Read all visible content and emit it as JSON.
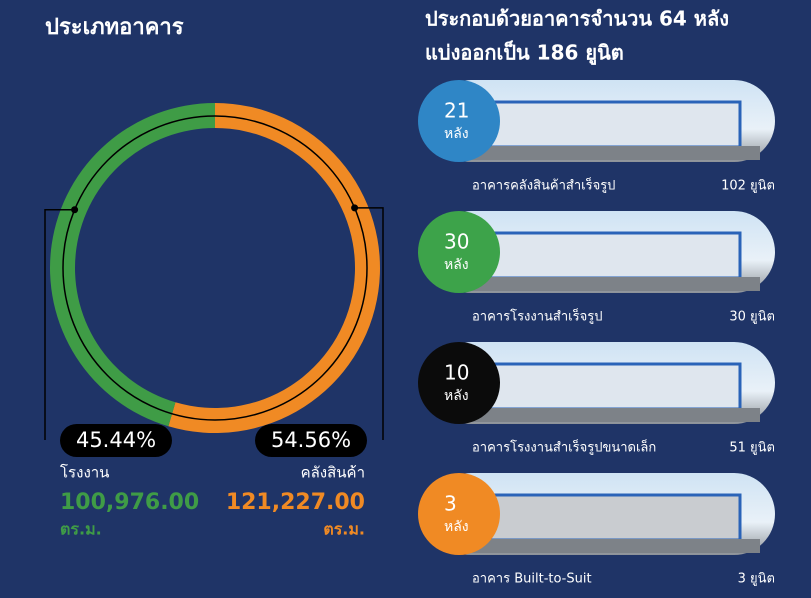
{
  "chart_data": {
    "type": "donut",
    "title": "ประเภทอาคาร",
    "categories": [
      "โรงงาน",
      "คลังสินค้า"
    ],
    "values": [
      45.44,
      54.56
    ],
    "value_labels": [
      "45.44%",
      "54.56%"
    ],
    "colors": [
      "#3f9c46",
      "#f08a24"
    ],
    "areas": [
      "100,976.00",
      "121,227.00"
    ],
    "area_unit": "ตร.ม."
  },
  "buildings": {
    "heading": [
      "ประกอบด้วยอาคารจำนวน 64 หลัง",
      "แบ่งออกเป็น 186 ยูนิต"
    ],
    "count_unit": "หลัง",
    "items": [
      {
        "count": "21",
        "name": "อาคารคลังสินค้าสำเร็จรูป",
        "units": "102 ยูนิต",
        "color": "#2f86c6"
      },
      {
        "count": "30",
        "name": "อาคารโรงงานสำเร็จรูป",
        "units": "30 ยูนิต",
        "color": "#3da34a"
      },
      {
        "count": "10",
        "name": "อาคารโรงงานสำเร็จรูปขนาดเล็ก",
        "units": "51 ยูนิต",
        "color": "#0b0b0b"
      },
      {
        "count": "3",
        "name": "อาคาร Built-to-Suit",
        "units": "3 ยูนิต",
        "color": "#f08a24"
      }
    ]
  }
}
